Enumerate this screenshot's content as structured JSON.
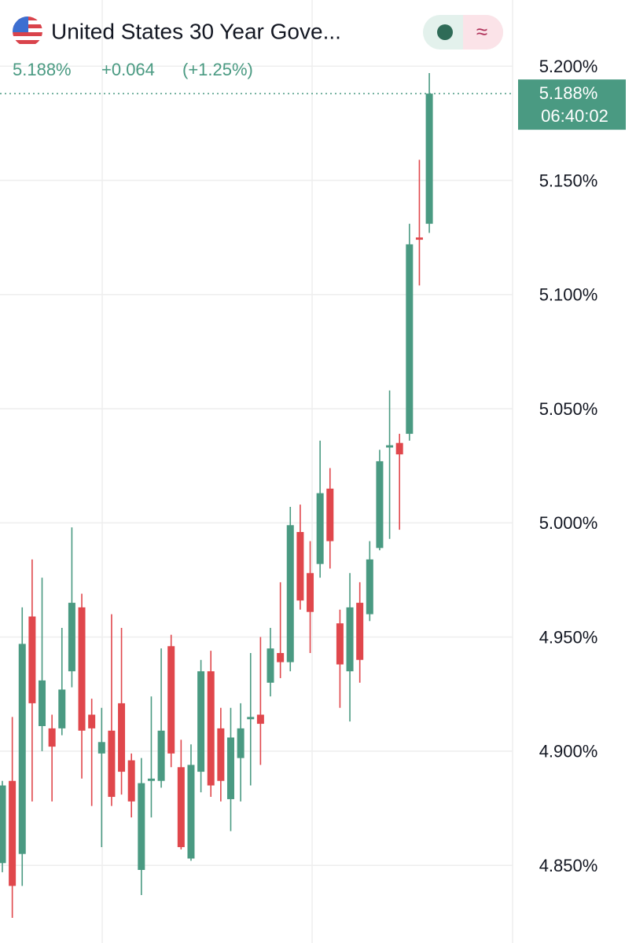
{
  "header": {
    "title": "United States 30 Year Gove...",
    "price": "5.188%",
    "change": "+0.064",
    "change_percent": "(+1.25%)"
  },
  "chart_data": {
    "type": "candlestick",
    "up_color": "#4a9a82",
    "down_color": "#e0474c",
    "open": [
      4.851,
      4.887,
      4.855,
      4.959,
      4.911,
      4.91,
      4.91,
      4.935,
      4.963,
      4.916,
      4.899,
      4.909,
      4.921,
      4.896,
      4.848,
      4.887,
      4.887,
      4.946,
      4.893,
      4.853,
      4.891,
      4.935,
      4.91,
      4.879,
      4.897,
      4.914,
      4.916,
      4.93,
      4.943,
      4.939,
      4.996,
      4.978,
      4.982,
      5.015,
      4.956,
      4.935,
      4.965,
      4.96,
      4.989,
      5.033,
      5.035,
      5.039,
      5.125,
      5.131
    ],
    "high": [
      4.887,
      4.915,
      4.963,
      4.984,
      4.976,
      4.916,
      4.954,
      4.998,
      4.969,
      4.923,
      4.919,
      4.96,
      4.954,
      4.899,
      4.897,
      4.924,
      4.945,
      4.951,
      4.905,
      4.903,
      4.94,
      4.944,
      4.919,
      4.919,
      4.921,
      4.943,
      4.95,
      4.954,
      4.974,
      5.007,
      5.008,
      4.992,
      5.036,
      5.024,
      4.962,
      4.978,
      4.974,
      4.992,
      5.032,
      5.058,
      5.039,
      5.131,
      5.159,
      5.197
    ],
    "low": [
      4.847,
      4.827,
      4.841,
      4.878,
      4.9,
      4.878,
      4.907,
      4.928,
      4.888,
      4.876,
      4.858,
      4.876,
      4.881,
      4.871,
      4.837,
      4.871,
      4.884,
      4.893,
      4.857,
      4.852,
      4.882,
      4.88,
      4.878,
      4.865,
      4.878,
      4.885,
      4.894,
      4.924,
      4.932,
      4.935,
      4.962,
      4.943,
      4.976,
      4.98,
      4.919,
      4.913,
      4.93,
      4.957,
      4.988,
      4.993,
      4.997,
      5.036,
      5.104,
      5.127
    ],
    "close": [
      4.885,
      4.841,
      4.947,
      4.921,
      4.931,
      4.902,
      4.927,
      4.965,
      4.909,
      4.91,
      4.904,
      4.88,
      4.891,
      4.878,
      4.886,
      4.888,
      4.909,
      4.899,
      4.858,
      4.894,
      4.935,
      4.885,
      4.887,
      4.906,
      4.91,
      4.915,
      4.912,
      4.945,
      4.939,
      4.999,
      4.966,
      4.961,
      5.013,
      4.992,
      4.938,
      4.963,
      4.94,
      4.984,
      5.027,
      5.034,
      5.03,
      5.122,
      5.124,
      5.188
    ],
    "ylim": [
      4.816,
      5.229
    ],
    "yticks": [
      {
        "value": 4.85,
        "label": "4.850%"
      },
      {
        "value": 4.9,
        "label": "4.900%"
      },
      {
        "value": 4.95,
        "label": "4.950%"
      },
      {
        "value": 5.0,
        "label": "5.000%"
      },
      {
        "value": 5.05,
        "label": "5.050%"
      },
      {
        "value": 5.1,
        "label": "5.100%"
      },
      {
        "value": 5.15,
        "label": "5.150%"
      },
      {
        "value": 5.2,
        "label": "5.200%"
      }
    ],
    "grid": true,
    "last_price": {
      "value": 5.188,
      "label": "5.188%"
    },
    "countdown": "06:40:02"
  }
}
